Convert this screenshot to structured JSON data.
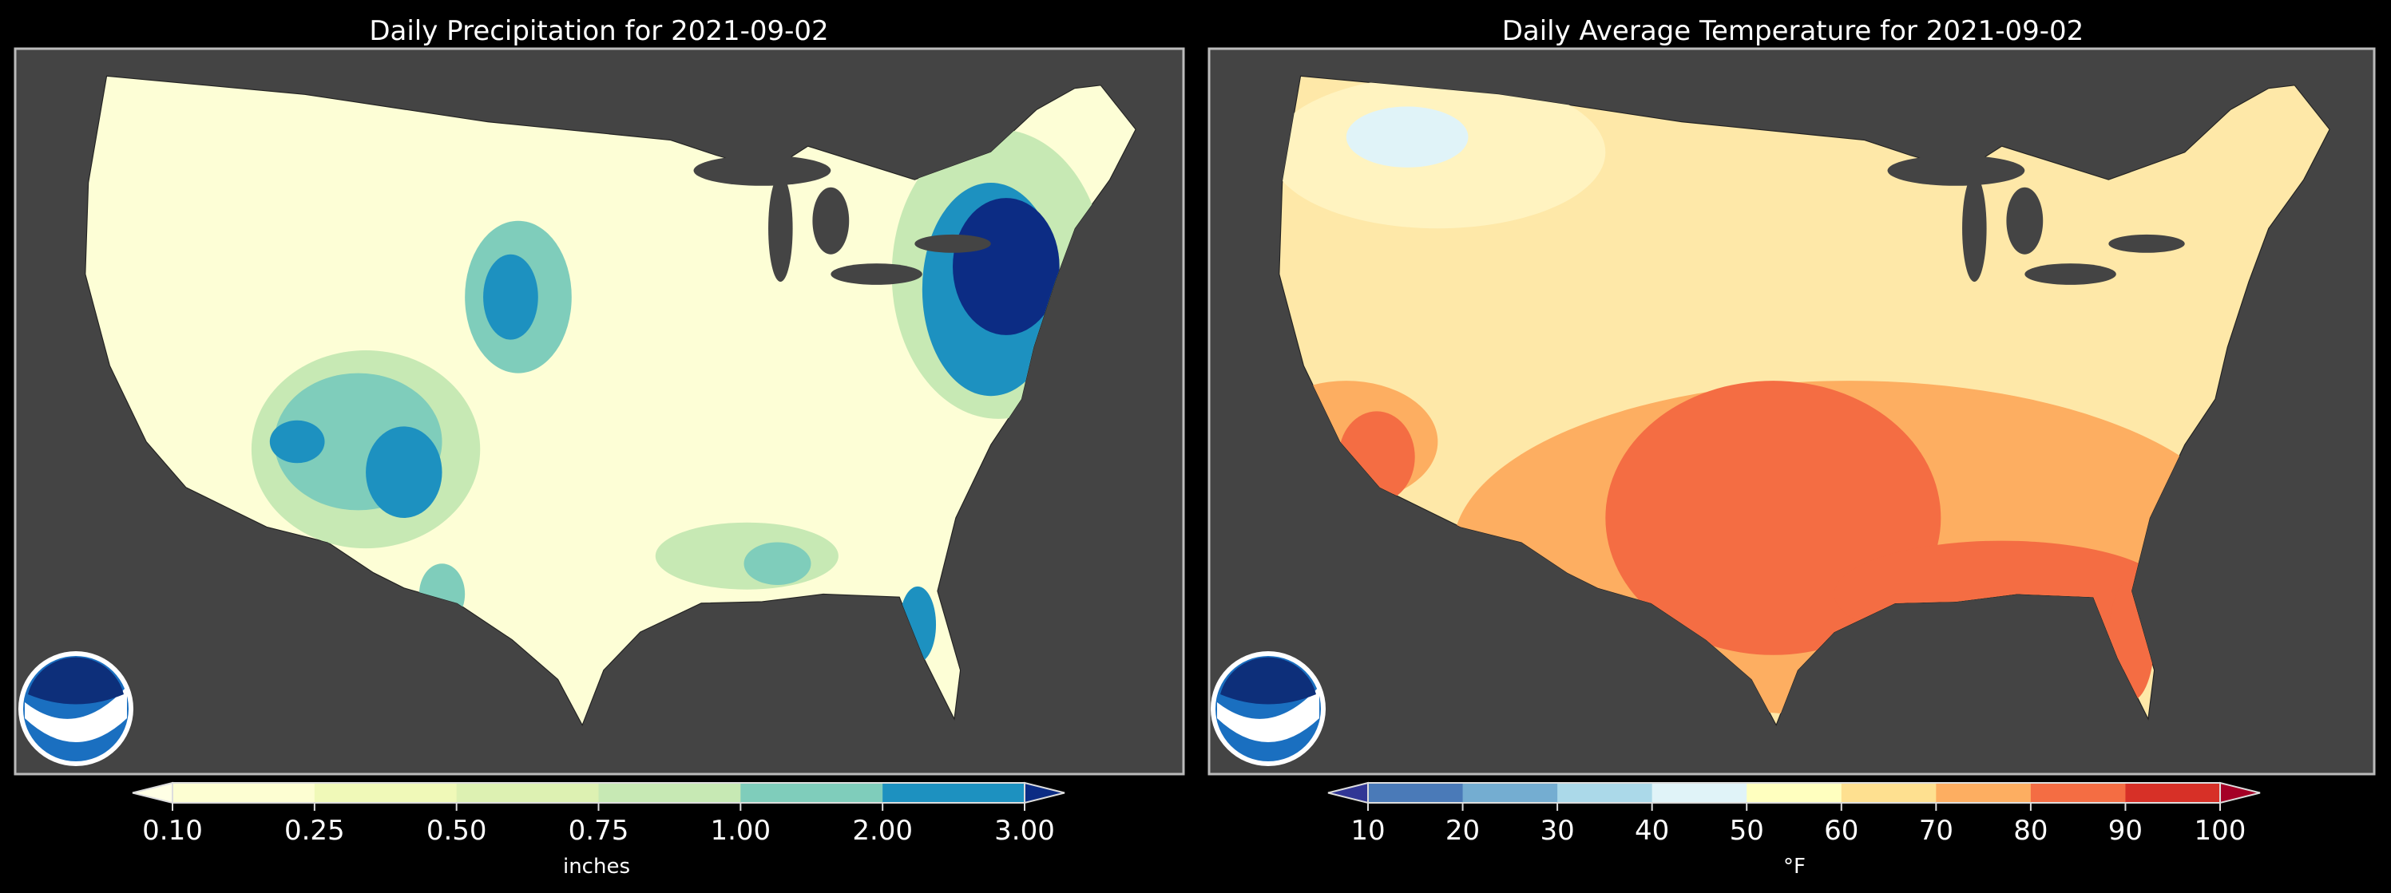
{
  "chart_data": [
    {
      "type": "heatmap",
      "title": "Daily Precipitation for 2021-09-02",
      "colorbar": {
        "label": "inches",
        "ticks": [
          "0.10",
          "0.25",
          "0.50",
          "0.75",
          "1.00",
          "2.00",
          "3.00"
        ],
        "bins": [
          {
            "from": 0.1,
            "to": 0.25,
            "color": "#fdfed2"
          },
          {
            "from": 0.25,
            "to": 0.5,
            "color": "#f0f9b8"
          },
          {
            "from": 0.5,
            "to": 0.75,
            "color": "#ddf1b2"
          },
          {
            "from": 0.75,
            "to": 1.0,
            "color": "#c7e9b4"
          },
          {
            "from": 1.0,
            "to": 2.0,
            "color": "#7fcdbb"
          },
          {
            "from": 2.0,
            "to": 3.0,
            "color": "#1d91c0"
          }
        ],
        "under_color": "#ffffe5",
        "over_color": "#0c2c84"
      },
      "region": "Contiguous United States",
      "logo": "NOAA"
    },
    {
      "type": "heatmap",
      "title": "Daily Average Temperature for 2021-09-02",
      "colorbar": {
        "label": "°F",
        "ticks": [
          "10",
          "20",
          "30",
          "40",
          "50",
          "60",
          "70",
          "80",
          "90",
          "100"
        ],
        "bins": [
          {
            "from": 10,
            "to": 20,
            "color": "#4a7ab8"
          },
          {
            "from": 20,
            "to": 30,
            "color": "#74add1"
          },
          {
            "from": 30,
            "to": 40,
            "color": "#abd9e9"
          },
          {
            "from": 40,
            "to": 50,
            "color": "#e0f3f8"
          },
          {
            "from": 50,
            "to": 60,
            "color": "#ffffbf"
          },
          {
            "from": 60,
            "to": 70,
            "color": "#fee090"
          },
          {
            "from": 70,
            "to": 80,
            "color": "#fdae61"
          },
          {
            "from": 80,
            "to": 90,
            "color": "#f46d43"
          },
          {
            "from": 90,
            "to": 100,
            "color": "#d73027"
          }
        ],
        "under_color": "#313695",
        "over_color": "#a50026"
      },
      "region": "Contiguous United States",
      "logo": "NOAA"
    }
  ]
}
